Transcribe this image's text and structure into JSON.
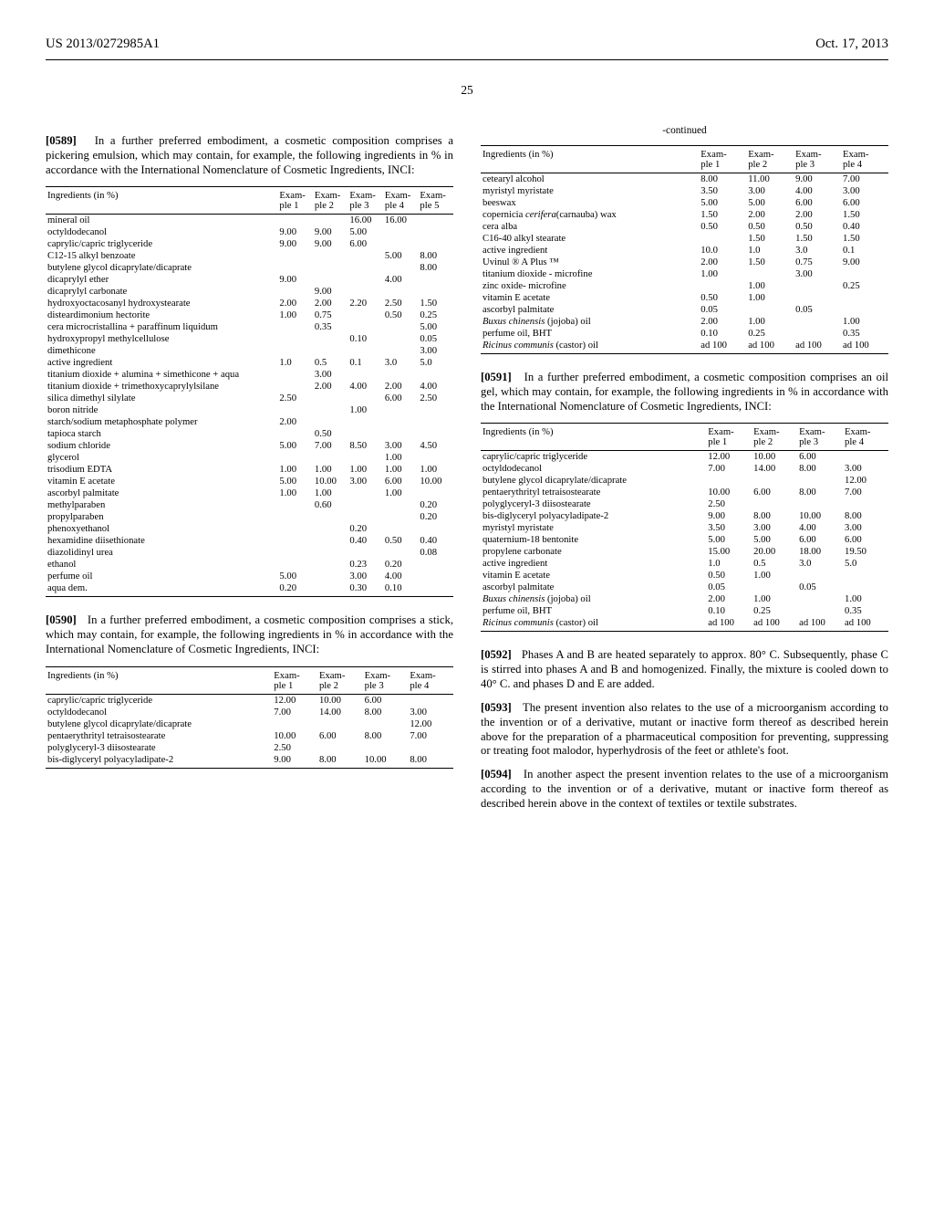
{
  "header": {
    "left": "US 2013/0272985A1",
    "right": "Oct. 17, 2013"
  },
  "page_number": "25",
  "para_0589": "In a further preferred embodiment, a cosmetic composition comprises a pickering emulsion, which may contain, for example, the following ingredients in % in accordance with the International Nomenclature of Cosmetic Ingredients, INCI:",
  "para_0590": "In a further preferred embodiment, a cosmetic composition comprises a stick, which may contain, for example, the following ingredients in % in accordance with the International Nomenclature of Cosmetic Ingredients, INCI:",
  "para_0591": "In a further preferred embodiment, a cosmetic composition comprises an oil gel, which may contain, for example, the following ingredients in % in accordance with the International Nomenclature of Cosmetic Ingredients, INCI:",
  "para_0592": "Phases A and B are heated separately to approx. 80° C. Subsequently, phase C is stirred into phases A and B and homogenized. Finally, the mixture is cooled down to 40° C. and phases D and E are added.",
  "para_0593": "The present invention also relates to the use of a microorganism according to the invention or of a derivative, mutant or inactive form thereof as described herein above for the preparation of a pharmaceutical composition for preventing, suppressing or treating foot malodor, hyperhydrosis of the feet or athlete's foot.",
  "para_0594": "In another aspect the present invention relates to the use of a microorganism according to the invention or of a derivative, mutant or inactive form thereof as described herein above in the context of textiles or textile substrates.",
  "table1": {
    "header_label": "Ingredients (in %)",
    "cols": [
      "Example 1",
      "Example 2",
      "Example 3",
      "Example 4",
      "Example 5"
    ],
    "rows": [
      [
        "mineral oil",
        "",
        "",
        "16.00",
        "16.00",
        ""
      ],
      [
        "octyldodecanol",
        "9.00",
        "9.00",
        "5.00",
        "",
        ""
      ],
      [
        "caprylic/capric triglyceride",
        "9.00",
        "9.00",
        "6.00",
        "",
        ""
      ],
      [
        "C12-15 alkyl benzoate",
        "",
        "",
        "",
        "5.00",
        "8.00"
      ],
      [
        "butylene glycol dicaprylate/dicaprate",
        "",
        "",
        "",
        "",
        "8.00"
      ],
      [
        "dicaprylyl ether",
        "9.00",
        "",
        "",
        "4.00",
        ""
      ],
      [
        "dicaprylyl carbonate",
        "",
        "9.00",
        "",
        "",
        ""
      ],
      [
        "hydroxyoctacosanyl hydroxystearate",
        "2.00",
        "2.00",
        "2.20",
        "2.50",
        "1.50"
      ],
      [
        "disteardimonium hectorite",
        "1.00",
        "0.75",
        "",
        "0.50",
        "0.25"
      ],
      [
        "cera microcristallina + paraffinum liquidum",
        "",
        "0.35",
        "",
        "",
        "5.00"
      ],
      [
        "hydroxypropyl methylcellulose",
        "",
        "",
        "0.10",
        "",
        "0.05"
      ],
      [
        "dimethicone",
        "",
        "",
        "",
        "",
        "3.00"
      ],
      [
        "active ingredient",
        "1.0",
        "0.5",
        "0.1",
        "3.0",
        "5.0"
      ],
      [
        "titanium dioxide + alumina + simethicone + aqua",
        "",
        "3.00",
        "",
        "",
        ""
      ],
      [
        "titanium dioxide + trimethoxycaprylylsilane",
        "",
        "2.00",
        "4.00",
        "2.00",
        "4.00"
      ],
      [
        "silica dimethyl silylate",
        "2.50",
        "",
        "",
        "6.00",
        "2.50"
      ],
      [
        "boron nitride",
        "",
        "",
        "1.00",
        "",
        ""
      ],
      [
        "starch/sodium metaphosphate polymer",
        "2.00",
        "",
        "",
        "",
        ""
      ],
      [
        "tapioca starch",
        "",
        "0.50",
        "",
        "",
        ""
      ],
      [
        "sodium chloride",
        "5.00",
        "7.00",
        "8.50",
        "3.00",
        "4.50"
      ],
      [
        "glycerol",
        "",
        "",
        "",
        "1.00",
        ""
      ],
      [
        "trisodium EDTA",
        "1.00",
        "1.00",
        "1.00",
        "1.00",
        "1.00"
      ],
      [
        "vitamin E acetate",
        "5.00",
        "10.00",
        "3.00",
        "6.00",
        "10.00"
      ],
      [
        "ascorbyl palmitate",
        "1.00",
        "1.00",
        "",
        "1.00",
        ""
      ],
      [
        "methylparaben",
        "",
        "0.60",
        "",
        "",
        "0.20"
      ],
      [
        "propylparaben",
        "",
        "",
        "",
        "",
        "0.20"
      ],
      [
        "phenoxyethanol",
        "",
        "",
        "0.20",
        "",
        ""
      ],
      [
        "hexamidine diisethionate",
        "",
        "",
        "0.40",
        "0.50",
        "0.40"
      ],
      [
        "diazolidinyl urea",
        "",
        "",
        "",
        "",
        "0.08"
      ],
      [
        "ethanol",
        "",
        "",
        "0.23",
        "0.20",
        ""
      ],
      [
        "perfume oil",
        "5.00",
        "",
        "3.00",
        "4.00",
        ""
      ],
      [
        "aqua dem.",
        "0.20",
        "",
        "0.30",
        "0.10",
        ""
      ]
    ]
  },
  "table2": {
    "header_label": "Ingredients (in %)",
    "cols": [
      "Example 1",
      "Example 2",
      "Example 3",
      "Example 4"
    ],
    "rows": [
      [
        "caprylic/capric triglyceride",
        "12.00",
        "10.00",
        "6.00",
        ""
      ],
      [
        "octyldodecanol",
        "7.00",
        "14.00",
        "8.00",
        "3.00"
      ],
      [
        "butylene glycol dicaprylate/dicaprate",
        "",
        "",
        "",
        "12.00"
      ],
      [
        "pentaerythrityl tetraisostearate",
        "10.00",
        "6.00",
        "8.00",
        "7.00"
      ],
      [
        "polyglyceryl-3 diisostearate",
        "2.50",
        "",
        "",
        ""
      ],
      [
        "bis-diglyceryl polyacyladipate-2",
        "9.00",
        "8.00",
        "10.00",
        "8.00"
      ]
    ]
  },
  "table2c": {
    "continued": "-continued",
    "header_label": "Ingredients (in %)",
    "cols": [
      "Example 1",
      "Example 2",
      "Example 3",
      "Example 4"
    ],
    "rows": [
      [
        "cetearyl alcohol",
        "8.00",
        "11.00",
        "9.00",
        "7.00"
      ],
      [
        "myristyl myristate",
        "3.50",
        "3.00",
        "4.00",
        "3.00"
      ],
      [
        "beeswax",
        "5.00",
        "5.00",
        "6.00",
        "6.00"
      ],
      [
        "copernicia <span class=\"italic\">cerifera</span>(carnauba) wax",
        "1.50",
        "2.00",
        "2.00",
        "1.50"
      ],
      [
        "cera alba",
        "0.50",
        "0.50",
        "0.50",
        "0.40"
      ],
      [
        "C16-40 alkyl stearate",
        "",
        "1.50",
        "1.50",
        "1.50"
      ],
      [
        "active ingredient",
        "10.0",
        "1.0",
        "3.0",
        "0.1"
      ],
      [
        "Uvinul ® A Plus ™",
        "2.00",
        "1.50",
        "0.75",
        "9.00"
      ],
      [
        "titanium dioxide - microfine",
        "1.00",
        "",
        "3.00",
        ""
      ],
      [
        "zinc oxide- microfine",
        "",
        "1.00",
        "",
        "0.25"
      ],
      [
        "vitamin E acetate",
        "0.50",
        "1.00",
        "",
        ""
      ],
      [
        "ascorbyl palmitate",
        "0.05",
        "",
        "0.05",
        ""
      ],
      [
        "<span class=\"italic\">Buxus chinensis</span> (jojoba) oil",
        "2.00",
        "1.00",
        "",
        "1.00"
      ],
      [
        "perfume oil, BHT",
        "0.10",
        "0.25",
        "",
        "0.35"
      ],
      [
        "<span class=\"italic\">Ricinus communis</span> (castor) oil",
        "ad 100",
        "ad 100",
        "ad 100",
        "ad 100"
      ]
    ]
  },
  "table3": {
    "header_label": "Ingredients (in %)",
    "cols": [
      "Example 1",
      "Example 2",
      "Example 3",
      "Example 4"
    ],
    "rows": [
      [
        "caprylic/capric triglyceride",
        "12.00",
        "10.00",
        "6.00",
        ""
      ],
      [
        "octyldodecanol",
        "7.00",
        "14.00",
        "8.00",
        "3.00"
      ],
      [
        "butylene glycol dicaprylate/dicaprate",
        "",
        "",
        "",
        "12.00"
      ],
      [
        "pentaerythrityl tetraisostearate",
        "10.00",
        "6.00",
        "8.00",
        "7.00"
      ],
      [
        "polyglyceryl-3 diisostearate",
        "2.50",
        "",
        "",
        ""
      ],
      [
        "bis-diglyceryl polyacyladipate-2",
        "9.00",
        "8.00",
        "10.00",
        "8.00"
      ],
      [
        "myristyl myristate",
        "3.50",
        "3.00",
        "4.00",
        "3.00"
      ],
      [
        "quaternium-18 bentonite",
        "5.00",
        "5.00",
        "6.00",
        "6.00"
      ],
      [
        "propylene carbonate",
        "15.00",
        "20.00",
        "18.00",
        "19.50"
      ],
      [
        "active ingredient",
        "1.0",
        "0.5",
        "3.0",
        "5.0"
      ],
      [
        "vitamin E acetate",
        "0.50",
        "1.00",
        "",
        ""
      ],
      [
        "ascorbyl palmitate",
        "0.05",
        "",
        "0.05",
        ""
      ],
      [
        "<span class=\"italic\">Buxus chinensis</span> (jojoba) oil",
        "2.00",
        "1.00",
        "",
        "1.00"
      ],
      [
        "perfume oil, BHT",
        "0.10",
        "0.25",
        "",
        "0.35"
      ],
      [
        "<span class=\"italic\">Ricinus communis</span> (castor) oil",
        "ad 100",
        "ad 100",
        "ad 100",
        "ad 100"
      ]
    ]
  }
}
